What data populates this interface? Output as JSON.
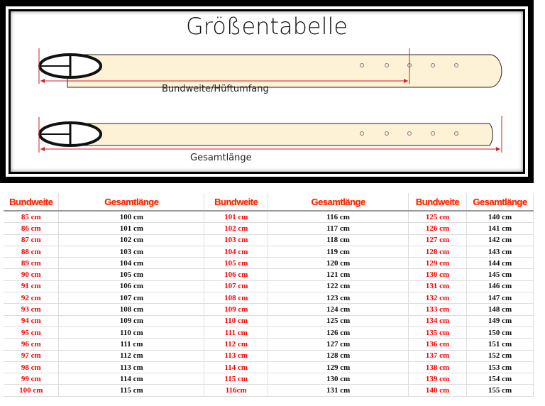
{
  "diagram": {
    "title": "Größentabelle",
    "label_waist": "Bundweite/Hüftumfang",
    "label_total": "Gesamtlänge",
    "belt_color": "#fdf1d6",
    "measure_color": "#d0202a"
  },
  "table": {
    "headers": [
      "Bundweite",
      "Gesamtlänge",
      "Bundweite",
      "Gesamtlänge",
      "Bundweite",
      "Gesamtlänge"
    ],
    "rows": [
      [
        "85 cm",
        "100 cm",
        "101 cm",
        "116 cm",
        "125 cm",
        "140 cm"
      ],
      [
        "86 cm",
        "101 cm",
        "102 cm",
        "117 cm",
        "126 cm",
        "141 cm"
      ],
      [
        "87 cm",
        "102 cm",
        "103 cm",
        "118 cm",
        "127 cm",
        "142 cm"
      ],
      [
        "88 cm",
        "103 cm",
        "104 cm",
        "119 cm",
        "128 cm",
        "143 cm"
      ],
      [
        "89 cm",
        "104 cm",
        "105 cm",
        "120 cm",
        "129 cm",
        "144 cm"
      ],
      [
        "90 cm",
        "105 cm",
        "106 cm",
        "121 cm",
        "130 cm",
        "145 cm"
      ],
      [
        "91 cm",
        "106 cm",
        "107 cm",
        "122 cm",
        "131 cm",
        "146 cm"
      ],
      [
        "92 cm",
        "107 cm",
        "108 cm",
        "123 cm",
        "132 cm",
        "147 cm"
      ],
      [
        "93 cm",
        "108 cm",
        "109 cm",
        "124 cm",
        "133 cm",
        "148 cm"
      ],
      [
        "94 cm",
        "109 cm",
        "110 cm",
        "125 cm",
        "134 cm",
        "149 cm"
      ],
      [
        "95 cm",
        "110 cm",
        "111 cm",
        "126 cm",
        "135 cm",
        "150 cm"
      ],
      [
        "96 cm",
        "111 cm",
        "112 cm",
        "127 cm",
        "136 cm",
        "151 cm"
      ],
      [
        "97 cm",
        "112 cm",
        "113 cm",
        "128 cm",
        "137 cm",
        "152 cm"
      ],
      [
        "98 cm",
        "113 cm",
        "114 cm",
        "129 cm",
        "138 cm",
        "153 cm"
      ],
      [
        "99 cm",
        "114 cm",
        "115 cm",
        "130 cm",
        "139 cm",
        "154 cm"
      ],
      [
        "100 cm",
        "115 cm",
        "116cm",
        "131 cm",
        "140 cm",
        "155 cm"
      ]
    ]
  }
}
